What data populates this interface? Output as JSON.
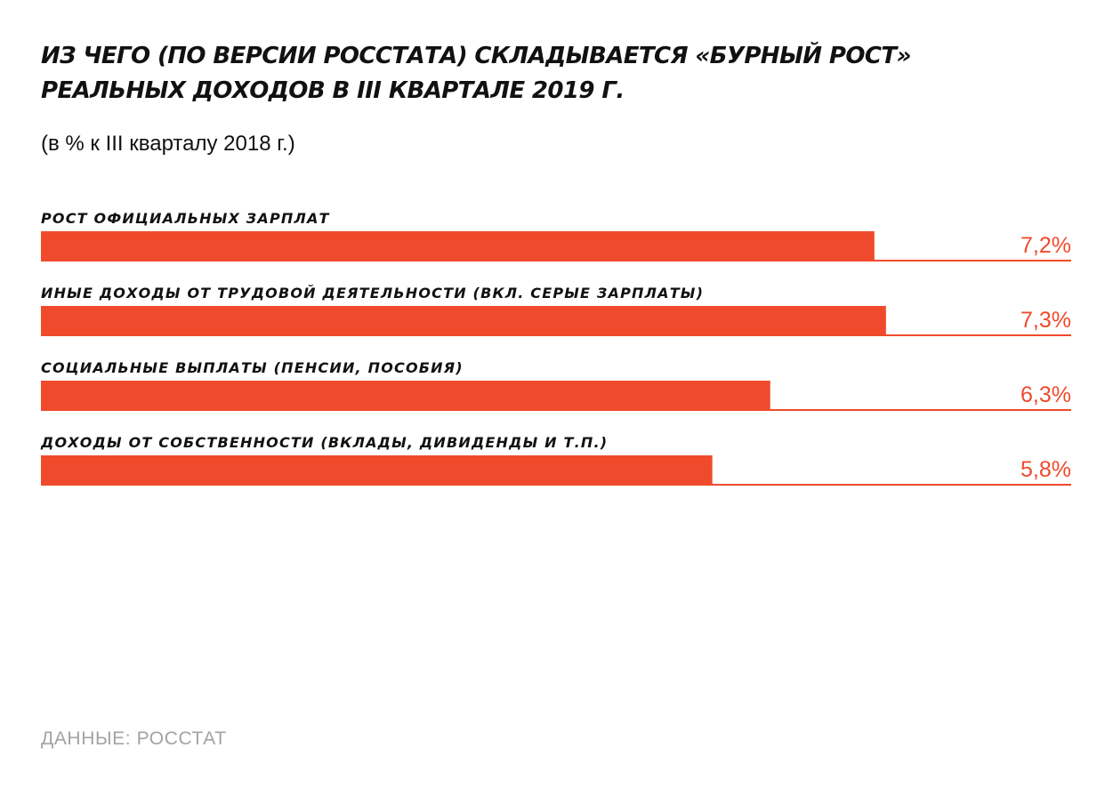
{
  "title": {
    "line1": "ИЗ ЧЕГО (ПО ВЕРСИИ РОССТАТА) СКЛАДЫВАЕТСЯ «БУРНЫЙ РОСТ»",
    "line2": "РЕАЛЬНЫХ ДОХОДОВ В III КВАРТАЛЕ 2019 Г."
  },
  "subtitle": "(в % к III кварталу 2018 г.)",
  "source": "ДАННЫЕ: РОССТАТ",
  "colors": {
    "bar": "#f04a2c",
    "value_text": "#f04a2c",
    "text": "#111111",
    "source_text": "#a3a3a3"
  },
  "chart_data": {
    "type": "bar",
    "orientation": "horizontal",
    "title": "ИЗ ЧЕГО (ПО ВЕРСИИ РОССТАТА) СКЛАДЫВАЕТСЯ «БУРНЫЙ РОСТ» РЕАЛЬНЫХ ДОХОДОВ В III КВАРТАЛЕ 2019 Г.",
    "subtitle": "(в % к III кварталу 2018 г.)",
    "categories": [
      "РОСТ ОФИЦИАЛЬНЫХ ЗАРПЛАТ",
      "ИНЫЕ ДОХОДЫ ОТ ТРУДОВОЙ ДЕЯТЕЛЬНОСТИ (ВКЛ. СЕРЫЕ ЗАРПЛАТЫ)",
      "СОЦИАЛЬНЫЕ ВЫПЛАТЫ (ПЕНСИИ, ПОСОБИЯ)",
      "ДОХОДЫ ОТ СОБСТВЕННОСТИ (ВКЛАДЫ, ДИВИДЕНДЫ И Т.П.)"
    ],
    "values": [
      7.2,
      7.3,
      6.3,
      5.8
    ],
    "value_labels": [
      "7,2%",
      "7,3%",
      "6,3%",
      "5,8%"
    ],
    "xlim": [
      0,
      8.9
    ],
    "grid": false,
    "legend": "none"
  }
}
